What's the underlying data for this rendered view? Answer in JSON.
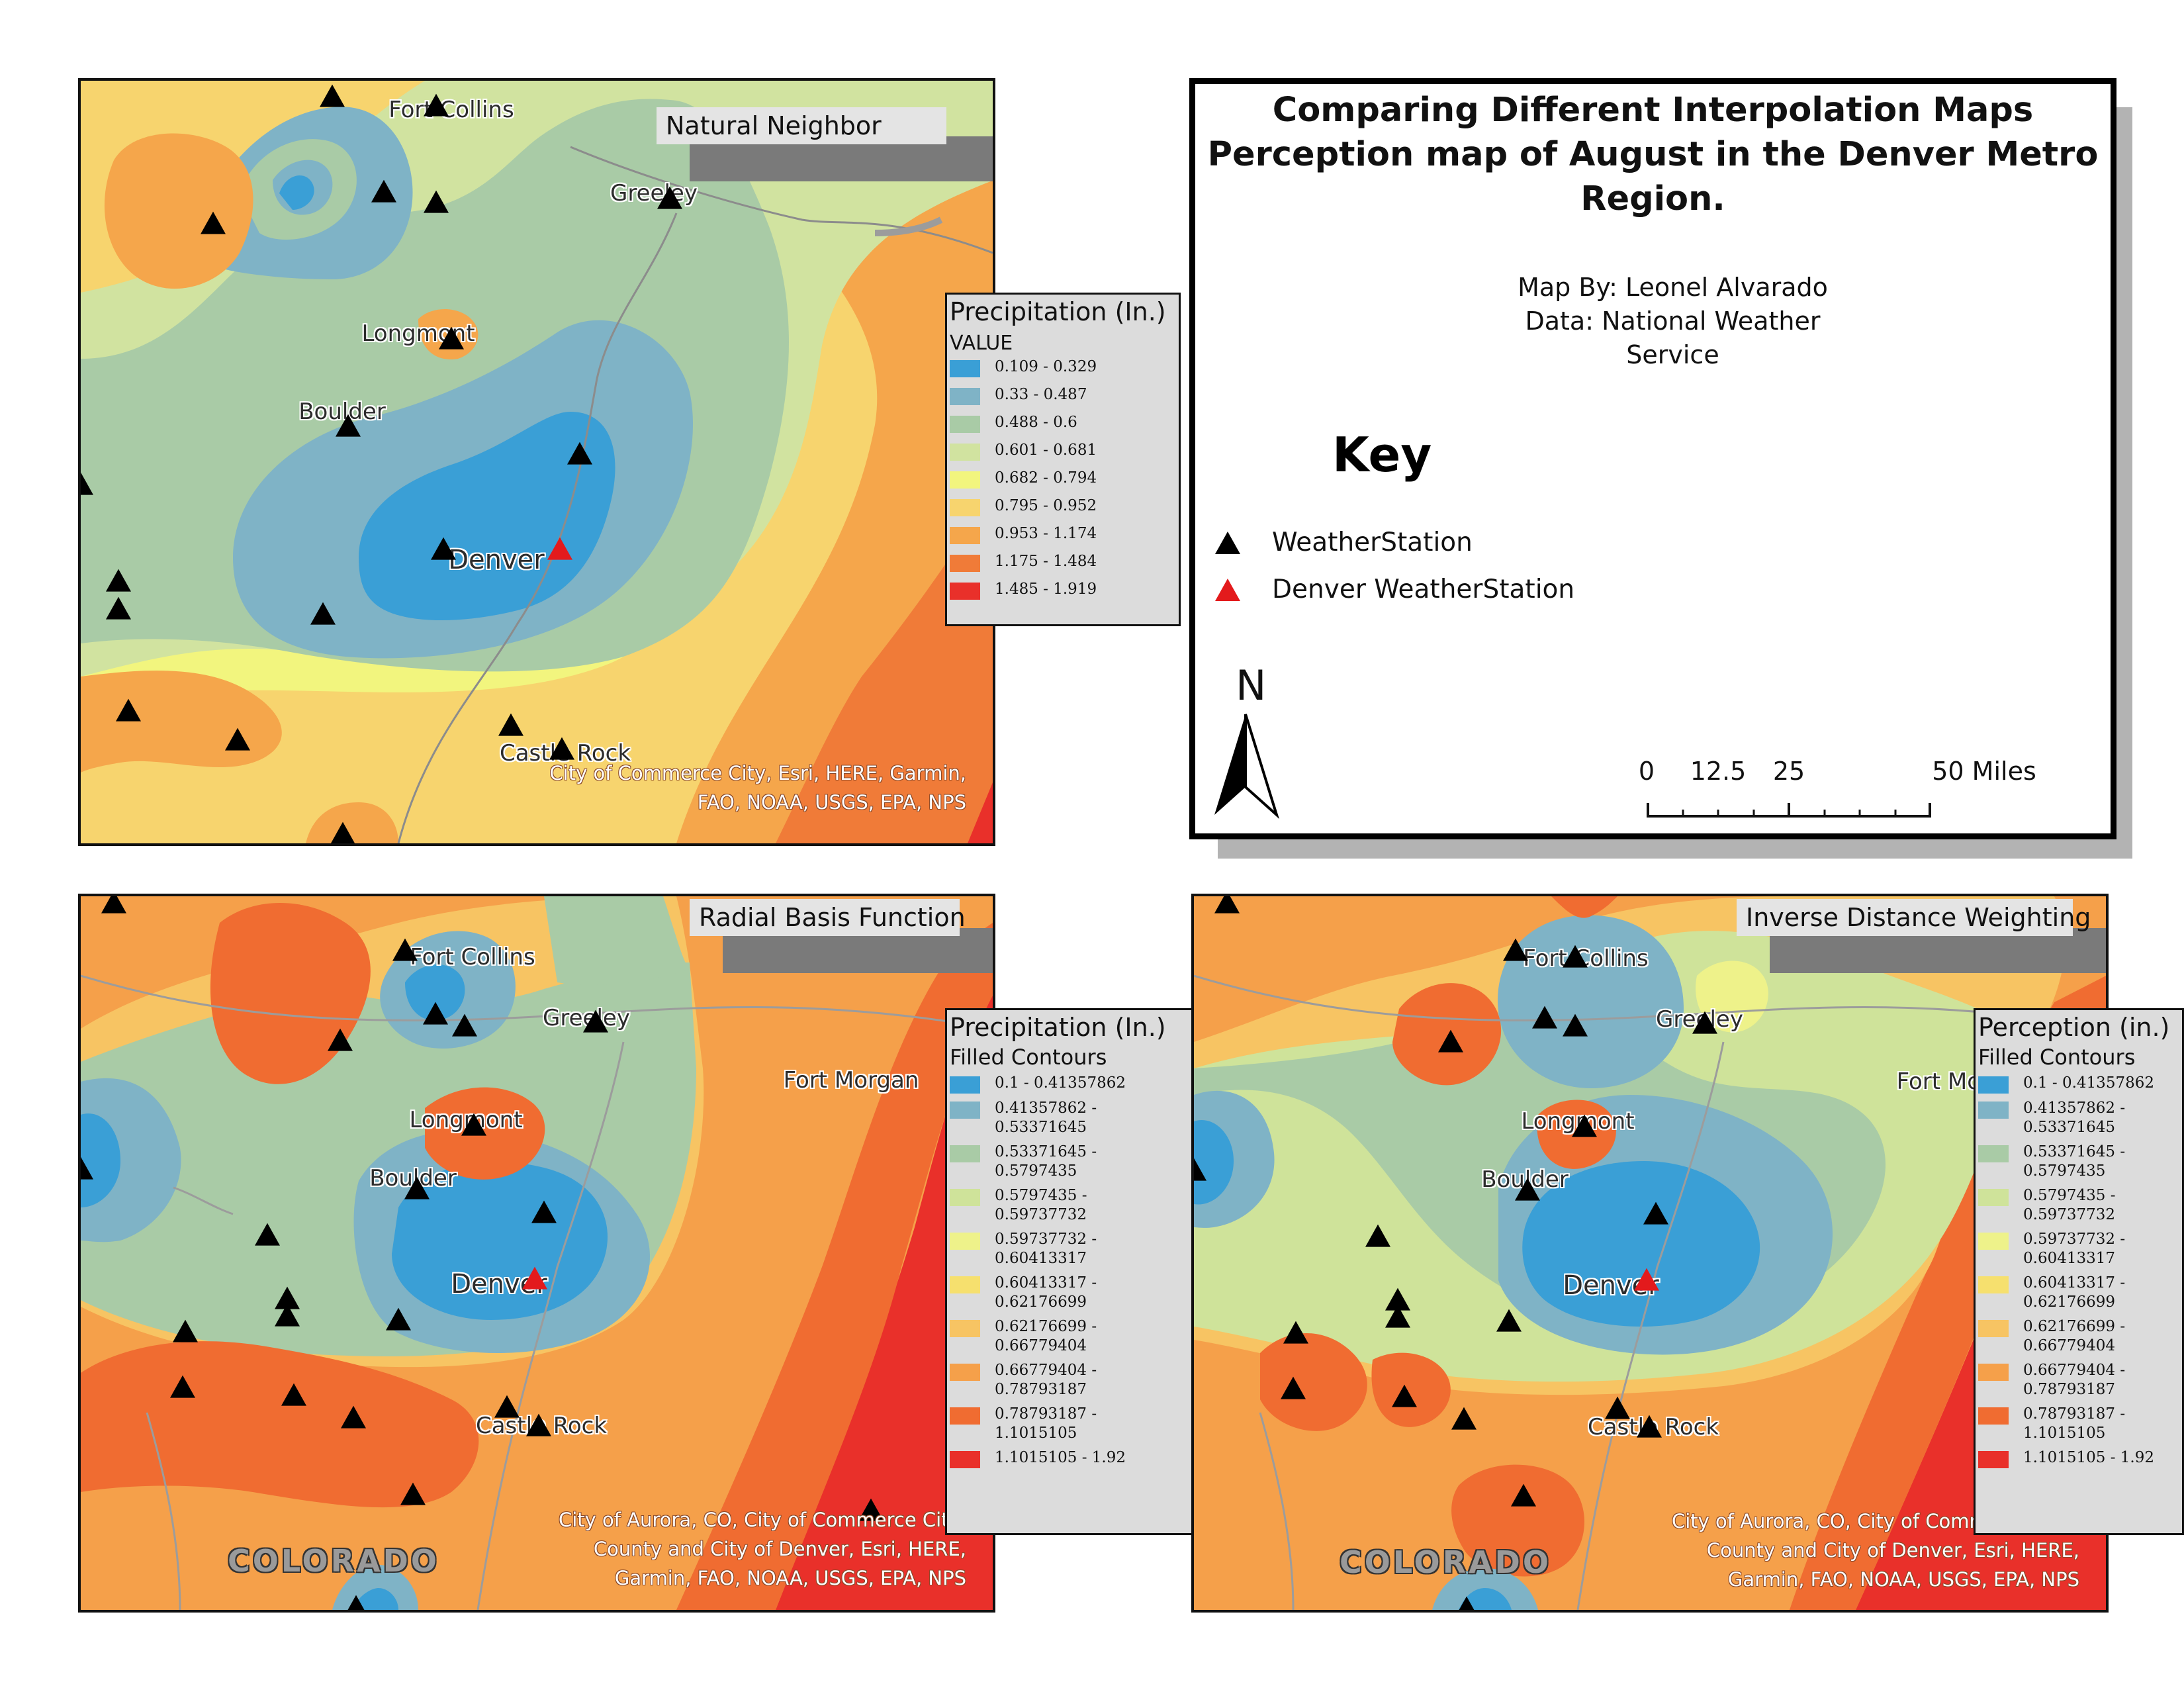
{
  "info_panel": {
    "title_line1": "Comparing Different Interpolation Maps",
    "title_line2": "Perception map of August in the Denver Metro",
    "title_line3": "Region.",
    "author": "Map By: Leonel Alvarado",
    "data_line1": "Data: National Weather",
    "data_line2": "Service",
    "key_title": "Key",
    "key_items": [
      {
        "label": "WeatherStation",
        "color": "#000000"
      },
      {
        "label": "Denver WeatherStation",
        "color": "#e31a1c"
      }
    ],
    "north_label": "N",
    "scale_labels": [
      "0",
      "12.5",
      "25",
      "50 Miles"
    ]
  },
  "maps": {
    "natural_neighbor": {
      "title": "Natural Neighbor",
      "cities": [
        "Fort Collins",
        "Greeley",
        "Longmont",
        "Boulder",
        "Denver",
        "Castle Rock"
      ],
      "credit_line1": "City of Commerce City, Esri, HERE, Garmin,",
      "credit_line2": "FAO, NOAA, USGS, EPA, NPS",
      "legend": {
        "title": "Precipitation (In.)",
        "subtitle": "VALUE",
        "classes": [
          {
            "label": "0.109 - 0.329",
            "color": "#3a9fd6"
          },
          {
            "label": "0.33 - 0.487",
            "color": "#7fb3c6"
          },
          {
            "label": "0.488 - 0.6",
            "color": "#a9cba6"
          },
          {
            "label": "0.601 - 0.681",
            "color": "#d1e3a0"
          },
          {
            "label": "0.682 - 0.794",
            "color": "#f2f57e"
          },
          {
            "label": "0.795 - 0.952",
            "color": "#f7d46e"
          },
          {
            "label": "0.953 - 1.174",
            "color": "#f5a64b"
          },
          {
            "label": "1.175 - 1.484",
            "color": "#f07b38"
          },
          {
            "label": "1.485 - 1.919",
            "color": "#e9302a"
          }
        ]
      }
    },
    "radial_basis": {
      "title": "Radial Basis Function",
      "cities": [
        "Fort Collins",
        "Greeley",
        "Fort Morgan",
        "Longmont",
        "Boulder",
        "Denver",
        "Castle Rock"
      ],
      "state_label": "COLORADO",
      "credit_line1": "City of Aurora, CO, City of Commerce City,",
      "credit_line2": "County and City of Denver, Esri, HERE,",
      "credit_line3": "Garmin, FAO, NOAA, USGS, EPA, NPS",
      "legend": {
        "title": "Precipitation (In.)",
        "subtitle": "Filled Contours",
        "classes": [
          {
            "label": "0.1 - 0.41357862",
            "color": "#3a9fd6"
          },
          {
            "label": "0.41357862 - 0.53371645",
            "color": "#7fb3c6"
          },
          {
            "label": "0.53371645 - 0.5797435",
            "color": "#a9cba6"
          },
          {
            "label": "0.5797435 - 0.59737732",
            "color": "#cfe39a"
          },
          {
            "label": "0.59737732 - 0.60413317",
            "color": "#eef28a"
          },
          {
            "label": "0.60413317 - 0.62176699",
            "color": "#f6e06e"
          },
          {
            "label": "0.62176699 - 0.66779404",
            "color": "#f7c463"
          },
          {
            "label": "0.66779404 - 0.78793187",
            "color": "#f5a04a"
          },
          {
            "label": "0.78793187 - 1.1015105",
            "color": "#f06c31"
          },
          {
            "label": "1.1015105 - 1.92",
            "color": "#e9302a"
          }
        ]
      }
    },
    "idw": {
      "title": "Inverse Distance Weighting",
      "cities": [
        "Fort Collins",
        "Greeley",
        "Fort Morgan",
        "Longmont",
        "Boulder",
        "Denver",
        "Castle Rock"
      ],
      "state_label": "COLORADO",
      "credit_line1": "City of Aurora, CO, City of Commerce City,",
      "credit_line2": "County and City of Denver, Esri, HERE,",
      "credit_line3": "Garmin, FAO, NOAA, USGS, EPA, NPS",
      "legend": {
        "title": "Perception (in.)",
        "subtitle": "Filled Contours",
        "classes": [
          {
            "label": "0.1 - 0.41357862",
            "color": "#3a9fd6"
          },
          {
            "label": "0.41357862 - 0.53371645",
            "color": "#7fb3c6"
          },
          {
            "label": "0.53371645 - 0.5797435",
            "color": "#a9cba6"
          },
          {
            "label": "0.5797435 - 0.59737732",
            "color": "#cfe39a"
          },
          {
            "label": "0.59737732 - 0.60413317",
            "color": "#eef28a"
          },
          {
            "label": "0.60413317 - 0.62176699",
            "color": "#f6e06e"
          },
          {
            "label": "0.62176699 - 0.66779404",
            "color": "#f7c463"
          },
          {
            "label": "0.66779404 - 0.78793187",
            "color": "#f5a04a"
          },
          {
            "label": "0.78793187 - 1.1015105",
            "color": "#f06c31"
          },
          {
            "label": "1.1015105 - 1.92",
            "color": "#e9302a"
          }
        ]
      }
    }
  }
}
